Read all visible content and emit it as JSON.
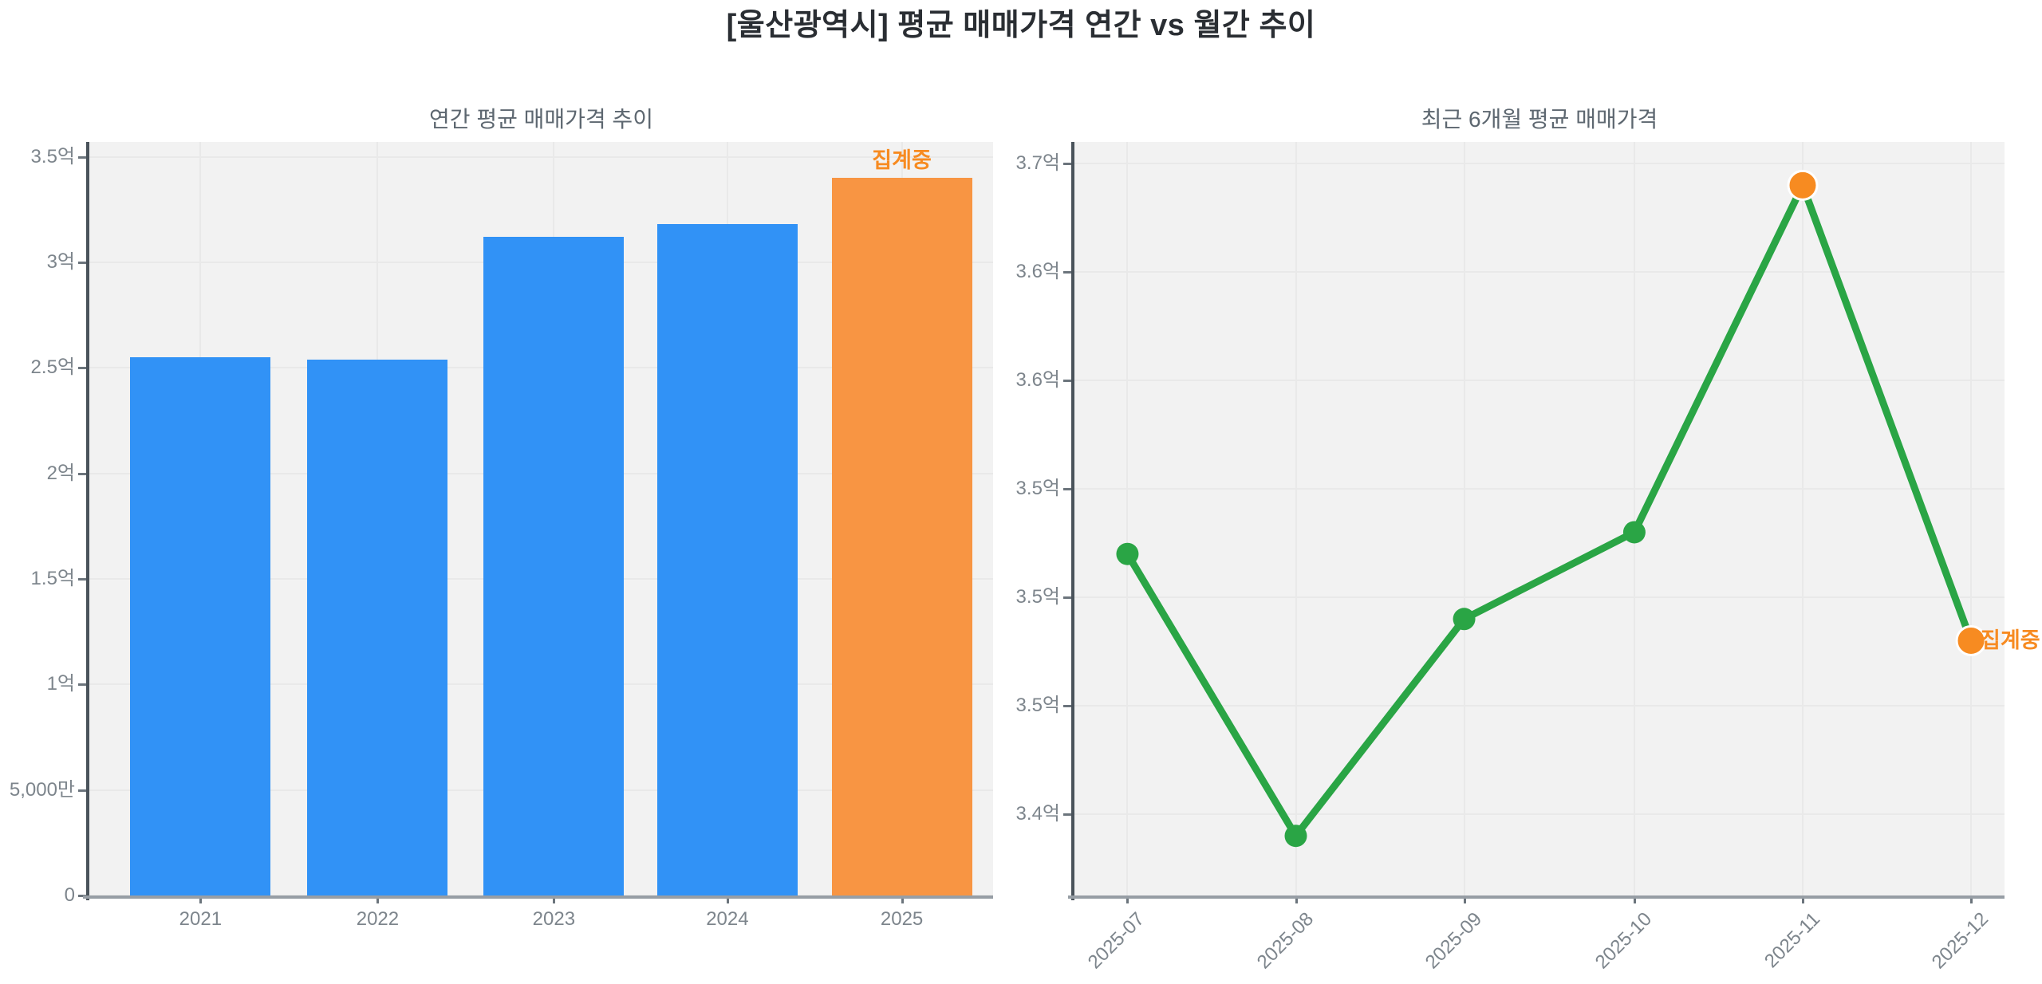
{
  "page": {
    "title": "[울산광역시] 평균 매매가격 연간 vs 월간 추이"
  },
  "chart_data": [
    {
      "type": "bar",
      "title": "연간 평균 매매가격 추이",
      "categories": [
        "2021",
        "2022",
        "2023",
        "2024",
        "2025"
      ],
      "values": [
        2.55,
        2.54,
        3.12,
        3.18,
        3.4
      ],
      "value_unit": "억",
      "ylim": [
        0,
        3.57
      ],
      "yticks": [
        {
          "value": 0,
          "label": "0"
        },
        {
          "value": 0.5,
          "label": "5,000만"
        },
        {
          "value": 1,
          "label": "1억"
        },
        {
          "value": 1.5,
          "label": "1.5억"
        },
        {
          "value": 2,
          "label": "2억"
        },
        {
          "value": 2.5,
          "label": "2.5억"
        },
        {
          "value": 3,
          "label": "3억"
        },
        {
          "value": 3.5,
          "label": "3.5억"
        }
      ],
      "grid": true,
      "bar_color_default": "#3192f6",
      "bar_color_highlight": "#f89543",
      "highlight_index": 4,
      "annotation": {
        "text": "집계중",
        "index": 4,
        "color": "#f78b21"
      },
      "x_tick_rotation": 0
    },
    {
      "type": "line",
      "title": "최근 6개월 평균 매매가격",
      "categories": [
        "2025-07",
        "2025-08",
        "2025-09",
        "2025-10",
        "2025-11",
        "2025-12"
      ],
      "values": [
        3.52,
        3.39,
        3.49,
        3.53,
        3.69,
        3.48
      ],
      "value_unit": "억",
      "ylim": [
        3.3625,
        3.71
      ],
      "yticks": [
        {
          "value": 3.4,
          "label": "3.4억"
        },
        {
          "value": 3.45,
          "label": "3.5억"
        },
        {
          "value": 3.5,
          "label": "3.5억"
        },
        {
          "value": 3.55,
          "label": "3.5억"
        },
        {
          "value": 3.6,
          "label": "3.6억"
        },
        {
          "value": 3.65,
          "label": "3.6억"
        },
        {
          "value": 3.7,
          "label": "3.7억"
        }
      ],
      "grid": true,
      "line_color": "#2aa545",
      "marker_color": "#2aa545",
      "highlight_indices": [
        4,
        5
      ],
      "highlight_marker_color": "#f78b21",
      "annotation": {
        "text": "집계중",
        "index": 5,
        "color": "#f78b21"
      },
      "x_tick_rotation": 45
    }
  ]
}
